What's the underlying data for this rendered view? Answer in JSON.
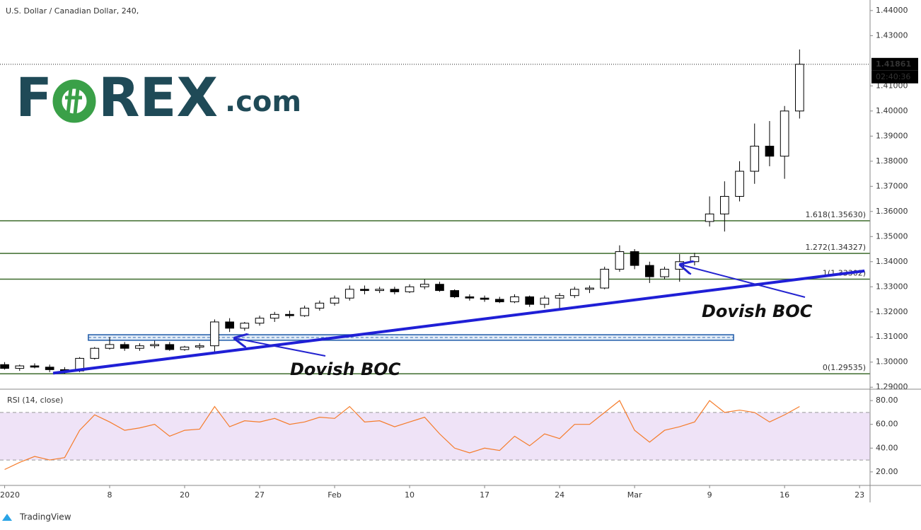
{
  "chart_data": [
    {
      "type": "candlestick",
      "title": "U.S. Dollar / Canadian Dollar, 240,",
      "x": [
        1,
        2,
        3,
        4,
        5,
        6,
        7,
        8,
        9,
        10,
        11,
        12,
        13,
        14,
        15,
        16,
        17,
        18,
        19,
        20,
        21,
        22,
        23,
        24,
        25,
        26,
        27,
        28,
        29,
        30,
        31,
        32,
        33,
        34,
        35,
        36,
        37,
        38,
        39,
        40,
        41,
        42,
        43,
        44,
        45,
        46,
        47,
        48,
        49,
        50,
        51,
        52,
        53,
        54
      ],
      "open": [
        1.299,
        1.2975,
        1.2985,
        1.298,
        1.297,
        1.2965,
        1.3015,
        1.3055,
        1.307,
        1.3055,
        1.3065,
        1.307,
        1.305,
        1.306,
        1.3065,
        1.316,
        1.3135,
        1.3155,
        1.3175,
        1.319,
        1.3185,
        1.3215,
        1.3235,
        1.3255,
        1.329,
        1.3285,
        1.329,
        1.328,
        1.33,
        1.331,
        1.3285,
        1.326,
        1.3255,
        1.325,
        1.324,
        1.326,
        1.323,
        1.3255,
        1.3265,
        1.329,
        1.3295,
        1.337,
        1.344,
        1.3385,
        1.334,
        1.337,
        1.34,
        1.356,
        1.359,
        1.366,
        1.376,
        1.386,
        1.382,
        1.4
      ],
      "high": [
        1.3,
        1.299,
        1.2995,
        1.299,
        1.298,
        1.302,
        1.306,
        1.31,
        1.308,
        1.3075,
        1.3085,
        1.308,
        1.3065,
        1.3075,
        1.317,
        1.3175,
        1.316,
        1.3185,
        1.32,
        1.3205,
        1.3225,
        1.3245,
        1.3265,
        1.3305,
        1.3305,
        1.33,
        1.33,
        1.331,
        1.333,
        1.332,
        1.329,
        1.327,
        1.3265,
        1.326,
        1.327,
        1.3265,
        1.3265,
        1.3275,
        1.33,
        1.3305,
        1.338,
        1.3465,
        1.345,
        1.34,
        1.338,
        1.343,
        1.3435,
        1.366,
        1.372,
        1.38,
        1.395,
        1.396,
        1.402,
        1.4245
      ],
      "low": [
        1.297,
        1.2965,
        1.2975,
        1.296,
        1.2954,
        1.296,
        1.301,
        1.305,
        1.3045,
        1.3045,
        1.3055,
        1.3045,
        1.3045,
        1.305,
        1.304,
        1.312,
        1.3125,
        1.3145,
        1.316,
        1.3175,
        1.318,
        1.3205,
        1.3225,
        1.3245,
        1.327,
        1.3275,
        1.327,
        1.3275,
        1.329,
        1.328,
        1.3255,
        1.3245,
        1.324,
        1.3235,
        1.3235,
        1.322,
        1.3215,
        1.3205,
        1.3255,
        1.3275,
        1.329,
        1.336,
        1.337,
        1.3315,
        1.333,
        1.332,
        1.3385,
        1.354,
        1.352,
        1.364,
        1.371,
        1.378,
        1.373,
        1.397
      ],
      "close": [
        1.2975,
        1.2985,
        1.298,
        1.297,
        1.2965,
        1.3015,
        1.3055,
        1.307,
        1.3055,
        1.3065,
        1.307,
        1.305,
        1.306,
        1.3065,
        1.316,
        1.3135,
        1.3155,
        1.3175,
        1.319,
        1.3185,
        1.3215,
        1.3235,
        1.3255,
        1.329,
        1.3285,
        1.329,
        1.328,
        1.33,
        1.331,
        1.3285,
        1.326,
        1.3255,
        1.325,
        1.324,
        1.326,
        1.323,
        1.3255,
        1.3265,
        1.329,
        1.3295,
        1.337,
        1.344,
        1.3385,
        1.334,
        1.337,
        1.34,
        1.342,
        1.359,
        1.366,
        1.376,
        1.386,
        1.382,
        1.4,
        1.41861
      ],
      "up_color": "#ffffff",
      "down_color": "#000000",
      "wick_color": "#000000",
      "xlim": [
        0.69,
        58.7
      ],
      "ylim": [
        1.2895,
        1.4442
      ],
      "xticks": [
        {
          "value": 1,
          "label": "2020"
        },
        8,
        {
          "value": 13,
          "label": "20"
        },
        {
          "value": 18,
          "label": "27"
        },
        {
          "value": 23,
          "label": "Feb"
        },
        {
          "value": 28,
          "label": "10"
        },
        {
          "value": 33,
          "label": "17"
        },
        {
          "value": 38,
          "label": "24"
        },
        {
          "value": 43,
          "label": "Mar"
        },
        {
          "value": 48,
          "label": "9"
        },
        {
          "value": 53,
          "label": "16"
        },
        {
          "value": 58,
          "label": "23"
        }
      ],
      "yticks": [
        {
          "value": 1.29,
          "label": "1.29000"
        },
        {
          "value": 1.3,
          "label": "1.30000"
        },
        {
          "value": 1.31,
          "label": "1.31000"
        },
        {
          "value": 1.32,
          "label": "1.32000"
        },
        {
          "value": 1.33,
          "label": "1.33000"
        },
        {
          "value": 1.34,
          "label": "1.34000"
        },
        {
          "value": 1.35,
          "label": "1.35000"
        },
        {
          "value": 1.36,
          "label": "1.36000"
        },
        {
          "value": 1.37,
          "label": "1.37000"
        },
        {
          "value": 1.38,
          "label": "1.38000"
        },
        {
          "value": 1.39,
          "label": "1.39000"
        },
        {
          "value": 1.4,
          "label": "1.40000"
        },
        {
          "value": 1.41,
          "label": "1.41000"
        },
        {
          "value": 1.43,
          "label": "1.43000"
        },
        {
          "value": 1.44,
          "label": "1.44000"
        }
      ],
      "current_price": {
        "value": 1.41861,
        "label": "1.41861"
      },
      "timer": "02:40:36",
      "levels": [
        {
          "value": 1.3563,
          "label": "1.618(1.35630)"
        },
        {
          "value": 1.34327,
          "label": "1.272(1.34327)"
        },
        {
          "value": 1.33302,
          "label": "1(1.33302)"
        },
        {
          "value": 1.29535,
          "label": "0(1.29535)"
        }
      ],
      "level_color": "#3d6b2c",
      "trendline": {
        "x": [
          4.23,
          58.33
        ],
        "y": [
          1.2956,
          1.3363
        ],
        "color": "#1f1fd6"
      },
      "range_box": {
        "x": [
          6.58,
          49.6
        ],
        "y": [
          1.3087,
          1.3109
        ],
        "color": "#1e5aa8"
      },
      "annotations": [
        "Dovish BOC",
        "Dovish BOC"
      ]
    },
    {
      "type": "line",
      "name": "RSI (14, close)",
      "x": [
        1,
        2,
        3,
        4,
        5,
        6,
        7,
        8,
        9,
        10,
        11,
        12,
        13,
        14,
        15,
        16,
        17,
        18,
        19,
        20,
        21,
        22,
        23,
        24,
        25,
        26,
        27,
        28,
        29,
        30,
        31,
        32,
        33,
        34,
        35,
        36,
        37,
        38,
        39,
        40,
        41,
        42,
        43,
        44,
        45,
        46,
        47,
        48,
        49,
        50,
        51,
        52,
        53,
        54
      ],
      "values": [
        22,
        28,
        33,
        30,
        32,
        55,
        68,
        62,
        55,
        57,
        60,
        50,
        55,
        56,
        75,
        58,
        63,
        62,
        65,
        60,
        62,
        66,
        65,
        75,
        62,
        63,
        58,
        62,
        66,
        52,
        40,
        36,
        40,
        38,
        50,
        42,
        52,
        48,
        60,
        60,
        70,
        80,
        55,
        45,
        55,
        58,
        62,
        80,
        70,
        72,
        70,
        62,
        68,
        75
      ],
      "color": "#f57c2b",
      "band": [
        30,
        70
      ],
      "band_color": "#efe3f7",
      "ylim": [
        9.2,
        89
      ],
      "yticks": [
        {
          "value": 20,
          "label": "20.00"
        },
        {
          "value": 40,
          "label": "40.00"
        },
        {
          "value": 60,
          "label": "60.00"
        },
        {
          "value": 80,
          "label": "80.00"
        }
      ]
    }
  ],
  "logo": {
    "left": "F",
    "right": "REX",
    "suffix": ".com"
  },
  "footer": "TradingView"
}
